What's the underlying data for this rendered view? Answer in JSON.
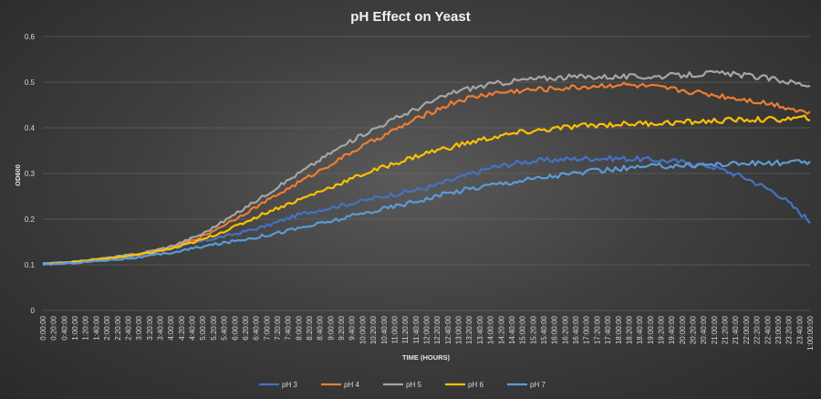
{
  "chart_data": {
    "type": "line",
    "title": "pH Effect on Yeast",
    "xlabel": "TIME (HOURS)",
    "ylabel": "OD600",
    "ylim": [
      0,
      0.6
    ],
    "yticks": [
      "0",
      "0.1",
      "0.2",
      "0.3",
      "0.4",
      "0.5",
      "0.6"
    ],
    "x_tick_labels": [
      "0:00:00",
      "0:20:00",
      "0:40:00",
      "1:00:00",
      "1:20:00",
      "1:40:00",
      "2:00:00",
      "2:20:00",
      "2:40:00",
      "3:00:00",
      "3:20:00",
      "3:40:00",
      "4:00:00",
      "4:20:00",
      "4:40:00",
      "5:00:00",
      "5:20:00",
      "5:40:00",
      "6:00:00",
      "6:20:00",
      "6:40:00",
      "7:00:00",
      "7:20:00",
      "7:40:00",
      "8:00:00",
      "8:20:00",
      "8:40:00",
      "9:00:00",
      "9:20:00",
      "9:40:00",
      "10:00:00",
      "10:20:00",
      "10:40:00",
      "11:00:00",
      "11:20:00",
      "11:40:00",
      "12:00:00",
      "12:20:00",
      "12:40:00",
      "13:00:00",
      "13:20:00",
      "13:40:00",
      "14:00:00",
      "14:20:00",
      "14:40:00",
      "15:00:00",
      "15:20:00",
      "15:40:00",
      "16:00:00",
      "16:20:00",
      "16:40:00",
      "17:00:00",
      "17:20:00",
      "17:40:00",
      "18:00:00",
      "18:20:00",
      "18:40:00",
      "19:00:00",
      "19:20:00",
      "19:40:00",
      "20:00:00",
      "20:20:00",
      "20:40:00",
      "21:00:00",
      "21:20:00",
      "21:40:00",
      "22:00:00",
      "22:20:00",
      "22:40:00",
      "23:00:00",
      "23:20:00",
      "23:40:00",
      "1:00:00:00"
    ],
    "x_hours": [
      0,
      1,
      2,
      3,
      4,
      5,
      6,
      7,
      8,
      9,
      10,
      11,
      12,
      13,
      14,
      15,
      16,
      17,
      18,
      19,
      20,
      21,
      22,
      23,
      24
    ],
    "grid": true,
    "legend_position": "bottom",
    "series": [
      {
        "name": "pH 3",
        "color": "#4472C4",
        "values": [
          0.103,
          0.107,
          0.113,
          0.12,
          0.135,
          0.152,
          0.167,
          0.185,
          0.21,
          0.225,
          0.24,
          0.255,
          0.268,
          0.29,
          0.312,
          0.325,
          0.33,
          0.333,
          0.333,
          0.33,
          0.325,
          0.314,
          0.29,
          0.255,
          0.195
        ]
      },
      {
        "name": "pH 4",
        "color": "#ED7D31",
        "values": [
          0.101,
          0.106,
          0.114,
          0.123,
          0.138,
          0.162,
          0.2,
          0.24,
          0.28,
          0.32,
          0.36,
          0.395,
          0.43,
          0.46,
          0.475,
          0.482,
          0.486,
          0.49,
          0.495,
          0.49,
          0.482,
          0.472,
          0.462,
          0.45,
          0.432
        ]
      },
      {
        "name": "pH 5",
        "color": "#A5A5A5",
        "values": [
          0.102,
          0.107,
          0.115,
          0.124,
          0.14,
          0.168,
          0.21,
          0.255,
          0.3,
          0.345,
          0.385,
          0.42,
          0.452,
          0.482,
          0.495,
          0.505,
          0.51,
          0.512,
          0.512,
          0.512,
          0.515,
          0.52,
          0.515,
          0.505,
          0.493
        ]
      },
      {
        "name": "pH 6",
        "color": "#FFC000",
        "values": [
          0.101,
          0.106,
          0.114,
          0.122,
          0.135,
          0.155,
          0.183,
          0.215,
          0.242,
          0.27,
          0.298,
          0.322,
          0.345,
          0.362,
          0.378,
          0.39,
          0.398,
          0.405,
          0.408,
          0.41,
          0.412,
          0.415,
          0.418,
          0.418,
          0.422
        ]
      },
      {
        "name": "pH 7",
        "color": "#5B9BD5",
        "values": [
          0.1,
          0.104,
          0.11,
          0.116,
          0.126,
          0.14,
          0.152,
          0.165,
          0.18,
          0.195,
          0.212,
          0.228,
          0.245,
          0.262,
          0.275,
          0.285,
          0.295,
          0.303,
          0.31,
          0.315,
          0.318,
          0.32,
          0.322,
          0.323,
          0.325
        ]
      }
    ]
  }
}
